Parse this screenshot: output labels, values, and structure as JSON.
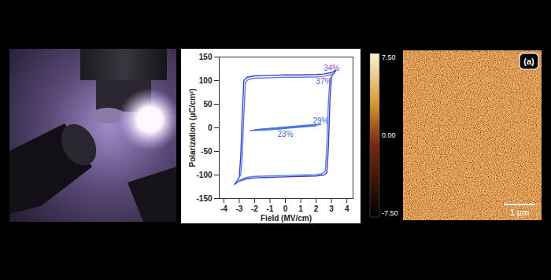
{
  "chart_data": [
    {
      "type": "line",
      "xlabel": "Field (MV/cm)",
      "ylabel": "Polarization (μC/cm²)",
      "xlim": [
        -4.3,
        4.4
      ],
      "xticks": [
        -4,
        -3,
        -2,
        -1,
        0,
        1,
        2,
        3,
        4
      ],
      "ylim": [
        -150,
        150
      ],
      "yticks": [
        -150,
        -100,
        -50,
        0,
        50,
        100,
        150
      ],
      "series": [
        {
          "color": "#3a3fc8",
          "x": [
            -3.3,
            -3.0,
            -2.5,
            -2,
            -1,
            0,
            1,
            2,
            2.5,
            2.7,
            2.8,
            2.9,
            3.0,
            3.2,
            3.3,
            3.0,
            2.5,
            2,
            1,
            0,
            -1,
            -2,
            -2.5,
            -2.7,
            -2.8,
            -2.9,
            -3.0,
            -3.2,
            -3.3
          ],
          "values": [
            -120,
            -113,
            -108,
            -106,
            -105,
            -104,
            -103,
            -102,
            -100,
            -95,
            -40,
            60,
            108,
            118,
            122,
            117,
            114,
            113,
            112,
            112,
            111,
            110,
            107,
            100,
            30,
            -60,
            -105,
            -115,
            -120
          ]
        },
        {
          "color": "#5b7fe0",
          "x": [
            -3.2,
            -2.9,
            -2.5,
            -2,
            -1,
            0,
            1,
            2,
            2.4,
            2.6,
            2.7,
            2.8,
            2.9,
            3.1,
            3.2,
            2.9,
            2.5,
            2,
            1,
            0,
            -1,
            -2,
            -2.4,
            -2.6,
            -2.7,
            -2.8,
            -2.9,
            -3.1,
            -3.2
          ],
          "values": [
            -116,
            -110,
            -105,
            -103,
            -102,
            -101,
            -100,
            -99,
            -97,
            -92,
            -35,
            55,
            104,
            113,
            116,
            112,
            109,
            108,
            107,
            107,
            106,
            105,
            103,
            96,
            25,
            -55,
            -100,
            -110,
            -116
          ]
        },
        {
          "color": "#4a78d8",
          "x": [
            -2.3,
            -1.5,
            -0.5,
            0.5,
            1.5,
            2.3,
            1.5,
            0.5,
            -0.5,
            -1.5,
            -2.3
          ],
          "values": [
            -6,
            -5,
            -3,
            1,
            4,
            7,
            6,
            3,
            0,
            -3,
            -6
          ]
        },
        {
          "color": "#4a78d8",
          "x": [
            -2.0,
            -1.2,
            -0.4,
            0.4,
            1.2,
            2.0,
            1.2,
            0.4,
            -0.4,
            -1.2,
            -2.0
          ],
          "values": [
            -4,
            -3,
            -2,
            0,
            2,
            4,
            3,
            2,
            0,
            -2,
            -4
          ]
        }
      ],
      "annotations": [
        {
          "text": "34%",
          "x": 3.0,
          "y": 127,
          "color": "#8a4fd0"
        },
        {
          "text": "37%",
          "x": 2.5,
          "y": 98,
          "color": "#8a4fd0"
        },
        {
          "text": "29%",
          "x": 2.3,
          "y": 15,
          "color": "#3c6fd6"
        },
        {
          "text": "23%",
          "x": 0.0,
          "y": -13,
          "color": "#3c6fd6"
        }
      ]
    },
    {
      "type": "image",
      "colorbar_range": [
        -7.5,
        7.5
      ],
      "colorbar_ticks": [
        {
          "value": 7.5,
          "label": "7.50"
        },
        {
          "value": 0,
          "label": "0.00"
        },
        {
          "value": -7.5,
          "label": "-7.50"
        }
      ],
      "annotations": [
        {
          "text": "(a)"
        },
        {
          "text": "1 µm"
        }
      ]
    }
  ]
}
